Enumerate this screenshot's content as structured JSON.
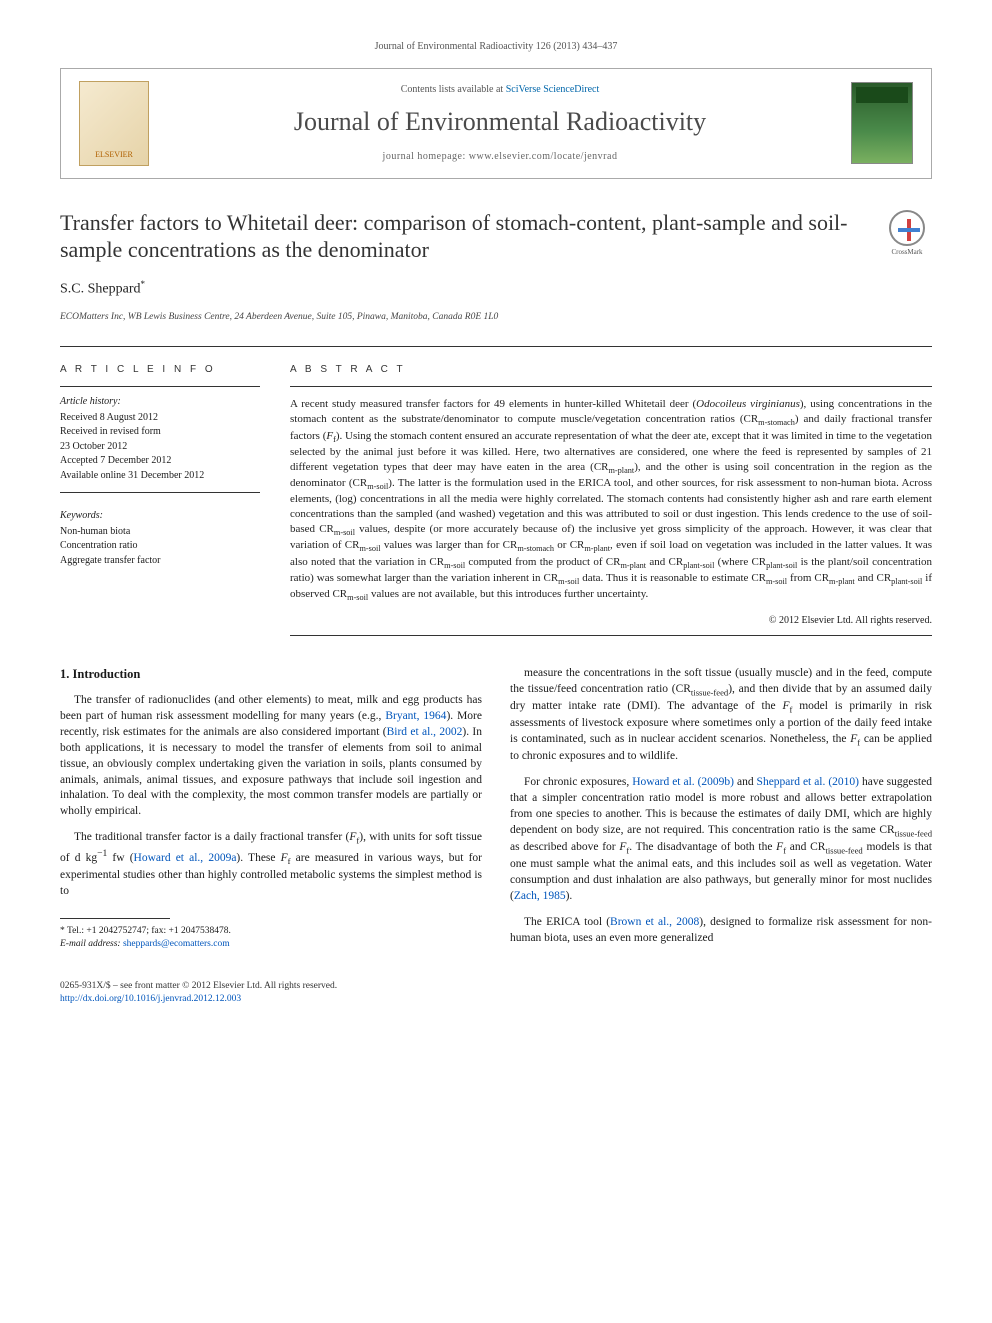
{
  "journal_ref": "Journal of Environmental Radioactivity 126 (2013) 434–437",
  "header": {
    "contents_pre": "Contents lists available at ",
    "contents_link": "SciVerse ScienceDirect",
    "journal_name": "Journal of Environmental Radioactivity",
    "homepage_pre": "journal homepage: ",
    "homepage": "www.elsevier.com/locate/jenvrad",
    "elsevier_label": "ELSEVIER"
  },
  "crossmark_label": "CrossMark",
  "title": "Transfer factors to Whitetail deer: comparison of stomach-content, plant-sample and soil-sample concentrations as the denominator",
  "author": "S.C. Sheppard",
  "author_marker": "*",
  "affiliation": "ECOMatters Inc, WB Lewis Business Centre, 24 Aberdeen Avenue, Suite 105, Pinawa, Manitoba, Canada R0E 1L0",
  "article_info_heading": "A R T I C L E   I N F O",
  "abstract_heading": "A B S T R A C T",
  "history_label": "Article history:",
  "history": [
    "Received 8 August 2012",
    "Received in revised form",
    "23 October 2012",
    "Accepted 7 December 2012",
    "Available online 31 December 2012"
  ],
  "keywords_label": "Keywords:",
  "keywords": [
    "Non-human biota",
    "Concentration ratio",
    "Aggregate transfer factor"
  ],
  "abstract_html": "A recent study measured transfer factors for 49 elements in hunter-killed Whitetail deer (<em>Odocoileus virginianus</em>), using concentrations in the stomach content as the substrate/denominator to compute muscle/vegetation concentration ratios (CR<sub>m-stomach</sub>) and daily fractional transfer factors (<em>F</em><sub>f</sub>). Using the stomach content ensured an accurate representation of what the deer ate, except that it was limited in time to the vegetation selected by the animal just before it was killed. Here, two alternatives are considered, one where the feed is represented by samples of 21 different vegetation types that deer may have eaten in the area (CR<sub>m-plant</sub>), and the other is using soil concentration in the region as the denominator (CR<sub>m-soil</sub>). The latter is the formulation used in the ERICA tool, and other sources, for risk assessment to non-human biota. Across elements, (log) concentrations in all the media were highly correlated. The stomach contents had consistently higher ash and rare earth element concentrations than the sampled (and washed) vegetation and this was attributed to soil or dust ingestion. This lends credence to the use of soil-based CR<sub>m-soil</sub> values, despite (or more accurately because of) the inclusive yet gross simplicity of the approach. However, it was clear that variation of CR<sub>m-soil</sub> values was larger than for CR<sub>m-stomach</sub> or CR<sub>m-plant</sub>, even if soil load on vegetation was included in the latter values. It was also noted that the variation in CR<sub>m-soil</sub> computed from the product of CR<sub>m-plant</sub> and CR<sub>plant-soil</sub> (where CR<sub>plant-soil</sub> is the plant/soil concentration ratio) was somewhat larger than the variation inherent in CR<sub>m-soil</sub> data. Thus it is reasonable to estimate CR<sub>m-soil</sub> from CR<sub>m-plant</sub> and CR<sub>plant-soil</sub> if observed CR<sub>m-soil</sub> values are not available, but this introduces further uncertainty.",
  "abstract_copyright": "© 2012 Elsevier Ltd. All rights reserved.",
  "section_heading": "1. Introduction",
  "para1_pre": "The transfer of radionuclides (and other elements) to meat, milk and egg products has been part of human risk assessment modelling for many years (e.g., ",
  "para1_ref1": "Bryant, 1964",
  "para1_mid": "). More recently, risk estimates for the animals are also considered important (",
  "para1_ref2": "Bird et al., 2002",
  "para1_post": "). In both applications, it is necessary to model the transfer of elements from soil to animal tissue, an obviously complex undertaking given the variation in soils, plants consumed by animals, animals, animal tissues, and exposure pathways that include soil ingestion and inhalation. To deal with the complexity, the most common transfer models are partially or wholly empirical.",
  "para2_html": "The traditional transfer factor is a daily fractional transfer (<em>F</em><sub>f</sub>), with units for soft tissue of d kg<sup>−1</sup> fw (<a class=\"ref\" href=\"#\">Howard et al., 2009a</a>). These <em>F</em><sub>f</sub> are measured in various ways, but for experimental studies other than highly controlled metabolic systems the simplest method is to",
  "para3_html": "measure the concentrations in the soft tissue (usually muscle) and in the feed, compute the tissue/feed concentration ratio (CR<sub>tissue-feed</sub>), and then divide that by an assumed daily dry matter intake rate (DMI). The advantage of the <em>F</em><sub>f</sub> model is primarily in risk assessments of livestock exposure where sometimes only a portion of the daily feed intake is contaminated, such as in nuclear accident scenarios. Nonetheless, the <em>F</em><sub>f</sub> can be applied to chronic exposures and to wildlife.",
  "para4_html": "For chronic exposures, <a class=\"ref\" href=\"#\">Howard et al. (2009b)</a> and <a class=\"ref\" href=\"#\">Sheppard et al. (2010)</a> have suggested that a simpler concentration ratio model is more robust and allows better extrapolation from one species to another. This is because the estimates of daily DMI, which are highly dependent on body size, are not required. This concentration ratio is the same CR<sub>tissue-feed</sub> as described above for <em>F</em><sub>f</sub>. The disadvantage of both the <em>F</em><sub>f</sub> and CR<sub>tissue-feed</sub> models is that one must sample what the animal eats, and this includes soil as well as vegetation. Water consumption and dust inhalation are also pathways, but generally minor for most nuclides (<a class=\"ref\" href=\"#\">Zach, 1985</a>).",
  "para5_html": "The ERICA tool (<a class=\"ref\" href=\"#\">Brown et al., 2008</a>), designed to formalize risk assessment for non-human biota, uses an even more generalized",
  "footnote_tel": "* Tel.: +1 2042752747; fax: +1 2047538478.",
  "footnote_email_label": "E-mail address:",
  "footnote_email": "sheppards@ecomatters.com",
  "footer_left_line1": "0265-931X/$ – see front matter © 2012 Elsevier Ltd. All rights reserved.",
  "footer_left_line2": "http://dx.doi.org/10.1016/j.jenvrad.2012.12.003",
  "colors": {
    "link": "#0055bb",
    "text": "#1a1a1a",
    "muted": "#555555"
  }
}
